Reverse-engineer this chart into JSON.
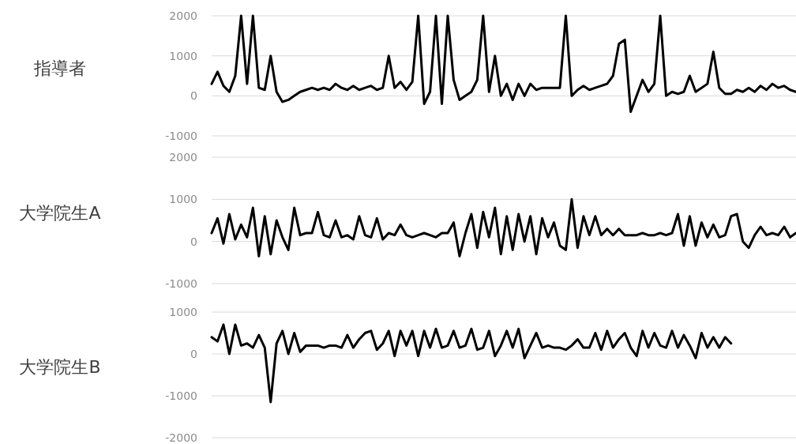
{
  "chart_data": [
    {
      "type": "line",
      "ylabel": "指導者",
      "categories": [
        null,
        null,
        null,
        null,
        null,
        null,
        null,
        null,
        null,
        null,
        null,
        null,
        null,
        null,
        null,
        null,
        null,
        null,
        null,
        null,
        null,
        null,
        null,
        null,
        null,
        null,
        null,
        null,
        null,
        null,
        null,
        null,
        null,
        null,
        null,
        null,
        null,
        null,
        null,
        null,
        null,
        null,
        null,
        null,
        null,
        null,
        null,
        null,
        null,
        null,
        null,
        null,
        null,
        null,
        null,
        null,
        null,
        null,
        null,
        null,
        null,
        null,
        null,
        null,
        null,
        null,
        null,
        null,
        null,
        null,
        null,
        null,
        null,
        null,
        null,
        null,
        null,
        null,
        null,
        null,
        null,
        null,
        null,
        null,
        null,
        null,
        null,
        null,
        null,
        null,
        null,
        null,
        null,
        null,
        null,
        null,
        null,
        null,
        null,
        null
      ],
      "series": [
        {
          "color": "#000000",
          "values": [
            300,
            600,
            250,
            100,
            500,
            2000,
            300,
            2000,
            200,
            150,
            1000,
            100,
            -150,
            -100,
            0,
            100,
            150,
            200,
            150,
            200,
            150,
            300,
            200,
            150,
            250,
            150,
            200,
            250,
            150,
            200,
            1000,
            200,
            350,
            150,
            350,
            2000,
            -200,
            100,
            2000,
            -200,
            2000,
            400,
            -100,
            0,
            100,
            400,
            2000,
            100,
            1000,
            0,
            300,
            -100,
            300,
            0,
            300,
            150,
            200,
            200,
            200,
            200,
            2000,
            0,
            150,
            250,
            150,
            200,
            250,
            300,
            500,
            1300,
            1400,
            -400,
            0,
            400,
            100,
            300,
            2000,
            0,
            100,
            50,
            100,
            500,
            100,
            200,
            300,
            1100,
            200,
            50,
            50,
            150,
            100,
            200,
            100,
            250,
            150,
            300,
            200,
            250,
            150,
            100
          ]
        }
      ],
      "ylim": [
        -1000,
        2000
      ],
      "yticks": [
        -1000,
        0,
        1000,
        2000
      ],
      "grid": "y",
      "tick_labels": "y"
    },
    {
      "type": "line",
      "ylabel": "大学院生A",
      "categories": [
        null,
        null,
        null,
        null,
        null,
        null,
        null,
        null,
        null,
        null,
        null,
        null,
        null,
        null,
        null,
        null,
        null,
        null,
        null,
        null,
        null,
        null,
        null,
        null,
        null,
        null,
        null,
        null,
        null,
        null,
        null,
        null,
        null,
        null,
        null,
        null,
        null,
        null,
        null,
        null,
        null,
        null,
        null,
        null,
        null,
        null,
        null,
        null,
        null,
        null,
        null,
        null,
        null,
        null,
        null,
        null,
        null,
        null,
        null,
        null,
        null,
        null,
        null,
        null,
        null,
        null,
        null,
        null,
        null,
        null,
        null,
        null,
        null,
        null,
        null,
        null,
        null,
        null,
        null,
        null,
        null,
        null,
        null,
        null,
        null,
        null,
        null,
        null,
        null,
        null,
        null,
        null,
        null,
        null,
        null,
        null,
        null,
        null,
        null,
        null
      ],
      "series": [
        {
          "color": "#000000",
          "values": [
            200,
            550,
            -50,
            650,
            50,
            400,
            100,
            800,
            -350,
            600,
            -300,
            500,
            100,
            -200,
            800,
            150,
            200,
            200,
            700,
            150,
            100,
            500,
            100,
            150,
            50,
            600,
            150,
            100,
            550,
            50,
            200,
            150,
            400,
            150,
            100,
            150,
            200,
            150,
            100,
            200,
            200,
            450,
            -350,
            200,
            650,
            -150,
            700,
            100,
            800,
            -300,
            600,
            -200,
            650,
            0,
            600,
            -300,
            550,
            100,
            450,
            -100,
            -200,
            1000,
            -150,
            600,
            150,
            600,
            150,
            300,
            150,
            300,
            150,
            150,
            150,
            200,
            150,
            150,
            200,
            150,
            200,
            650,
            -100,
            600,
            -100,
            450,
            100,
            400,
            100,
            150,
            600,
            650,
            0,
            -150,
            150,
            350,
            150,
            200,
            150,
            350,
            100,
            200
          ]
        }
      ],
      "ylim": [
        -1000,
        2000
      ],
      "yticks": [
        -1000,
        0,
        1000,
        2000
      ],
      "grid": "y",
      "tick_labels": "y"
    },
    {
      "type": "line",
      "ylabel": "大学院生B",
      "categories": [
        null,
        null,
        null,
        null,
        null,
        null,
        null,
        null,
        null,
        null,
        null,
        null,
        null,
        null,
        null,
        null,
        null,
        null,
        null,
        null,
        null,
        null,
        null,
        null,
        null,
        null,
        null,
        null,
        null,
        null,
        null,
        null,
        null,
        null,
        null,
        null,
        null,
        null,
        null,
        null,
        null,
        null,
        null,
        null,
        null,
        null,
        null,
        null,
        null,
        null,
        null,
        null,
        null,
        null,
        null,
        null,
        null,
        null,
        null,
        null,
        null,
        null,
        null,
        null,
        null,
        null,
        null,
        null,
        null,
        null,
        null,
        null,
        null,
        null,
        null,
        null,
        null,
        null,
        null,
        null,
        null,
        null,
        null,
        null,
        null,
        null,
        null,
        null,
        null,
        null,
        null,
        null,
        null,
        null,
        null,
        null,
        null,
        null,
        null,
        null
      ],
      "series": [
        {
          "color": "#000000",
          "values": [
            400,
            300,
            700,
            0,
            700,
            200,
            250,
            150,
            450,
            150,
            -1150,
            250,
            550,
            0,
            500,
            50,
            200,
            200,
            200,
            150,
            200,
            200,
            150,
            450,
            150,
            350,
            500,
            550,
            100,
            250,
            550,
            -50,
            550,
            200,
            550,
            -50,
            550,
            150,
            600,
            150,
            200,
            550,
            150,
            200,
            600,
            100,
            150,
            550,
            -50,
            200,
            550,
            150,
            600,
            -100,
            200,
            500,
            150,
            200,
            150,
            150,
            100,
            200,
            350,
            150,
            150,
            500,
            100,
            550,
            150,
            350,
            500,
            150,
            -50,
            550,
            150,
            500,
            200,
            150,
            550,
            150,
            450,
            200,
            -100,
            500,
            150,
            400,
            150,
            400,
            250,
            null,
            null,
            null,
            null,
            null,
            null,
            null,
            null,
            null,
            null,
            null
          ]
        }
      ],
      "ylim": [
        -2000,
        1000
      ],
      "yticks": [
        -2000,
        -1000,
        0,
        1000
      ],
      "grid": "y",
      "tick_labels": "y"
    }
  ]
}
